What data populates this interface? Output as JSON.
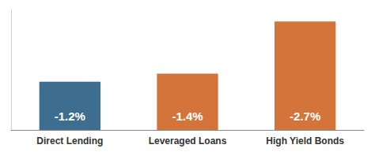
{
  "chart_data": {
    "type": "bar",
    "categories": [
      "Direct Lending",
      "Leveraged Loans",
      "High Yield Bonds"
    ],
    "values": [
      -1.2,
      -1.4,
      -2.7
    ],
    "value_labels": [
      "-1.2%",
      "-1.4%",
      "-2.7%"
    ],
    "colors": [
      "#3d6e8f",
      "#d4743a",
      "#d4743a"
    ],
    "ylim": [
      -3.0,
      0.0
    ],
    "data_labels": true,
    "tick_labels": "x",
    "grid": false
  }
}
